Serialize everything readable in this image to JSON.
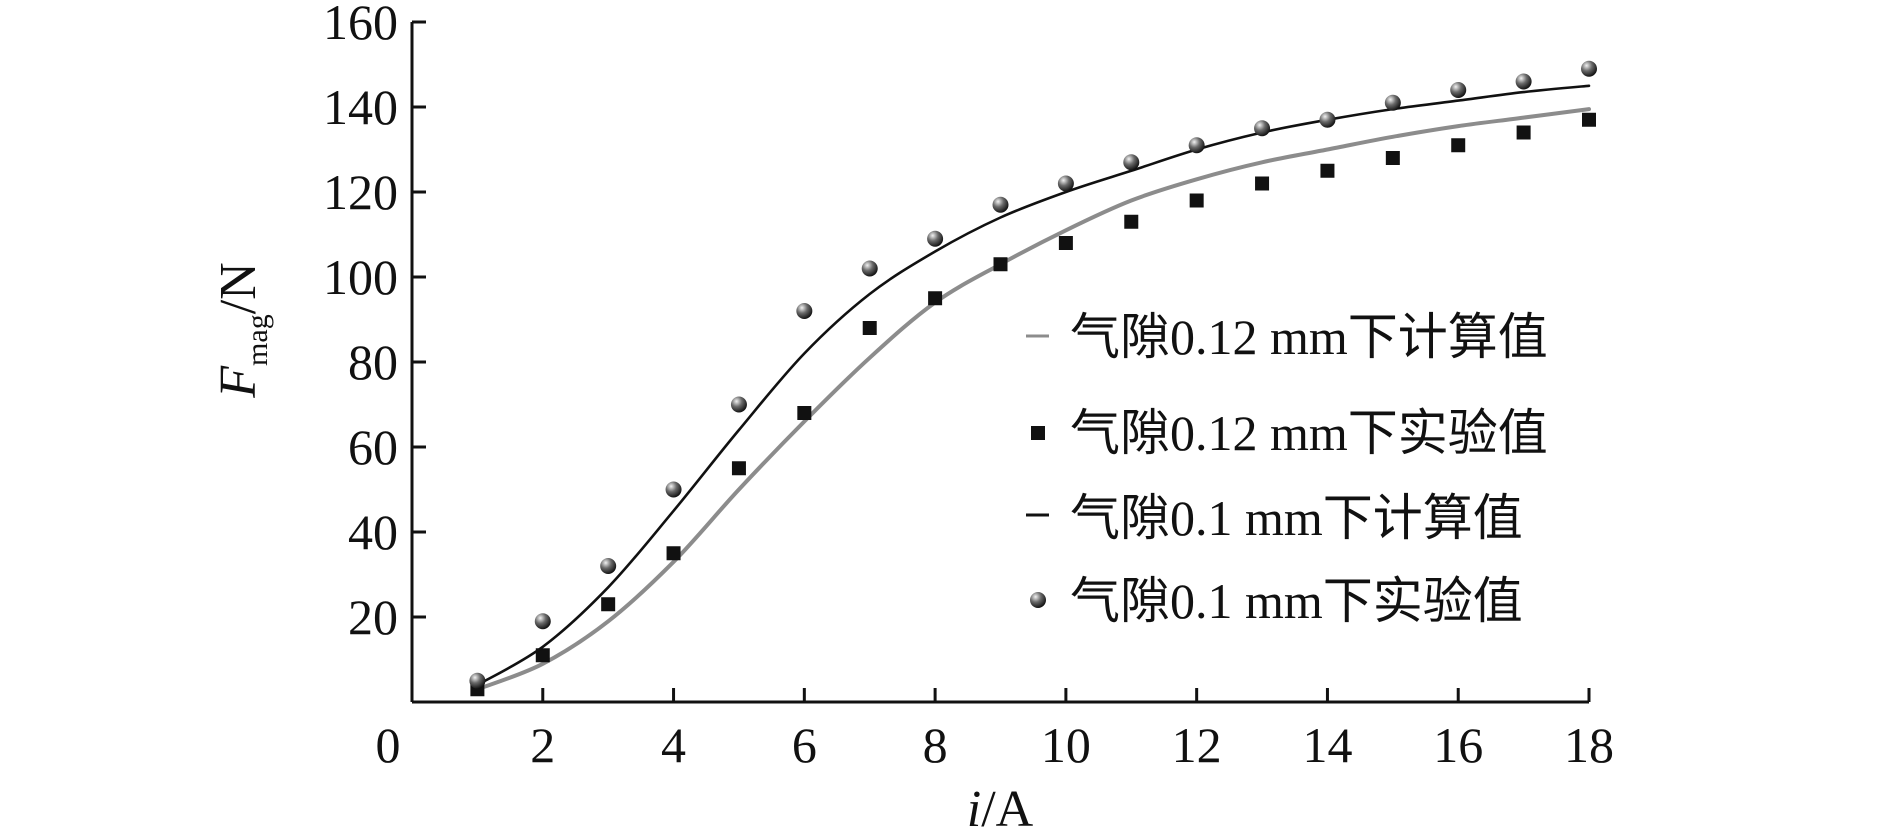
{
  "chart_data": {
    "type": "line",
    "xlabel": {
      "var": "i",
      "unit": "/A"
    },
    "ylabel": {
      "var": "F",
      "sub": "mag",
      "unit": "/N"
    },
    "xlim": [
      0,
      18
    ],
    "ylim": [
      0,
      160
    ],
    "xticks": [
      0,
      2,
      4,
      6,
      8,
      10,
      12,
      14,
      16,
      18
    ],
    "yticks": [
      20,
      40,
      60,
      80,
      100,
      120,
      140,
      160
    ],
    "grid": false,
    "legend_position": "center-right",
    "series": [
      {
        "name": "气隙0.12 mm下计算值",
        "style": "line",
        "color": "#8c8c8c",
        "x": [
          1,
          2,
          3,
          4,
          5,
          6,
          7,
          8,
          9,
          10,
          11,
          12,
          13,
          14,
          15,
          16,
          17,
          18
        ],
        "values": [
          3,
          9,
          19,
          33,
          50,
          66,
          81,
          94,
          103,
          111,
          118,
          123,
          127,
          130,
          133,
          135.5,
          137.5,
          139.5
        ]
      },
      {
        "name": "气隙0.12 mm下实验值",
        "style": "square",
        "color": "#111111",
        "x": [
          1,
          2,
          3,
          4,
          5,
          6,
          7,
          8,
          9,
          10,
          11,
          12,
          13,
          14,
          15,
          16,
          17,
          18
        ],
        "values": [
          3,
          11,
          23,
          35,
          55,
          68,
          88,
          95,
          103,
          108,
          113,
          118,
          122,
          125,
          128,
          131,
          134,
          137
        ]
      },
      {
        "name": "气隙0.1 mm下计算值",
        "style": "line",
        "color": "#111111",
        "x": [
          1,
          2,
          3,
          4,
          5,
          6,
          7,
          8,
          9,
          10,
          11,
          12,
          13,
          14,
          15,
          16,
          17,
          18
        ],
        "values": [
          4,
          13,
          27,
          45,
          64,
          82,
          96,
          106,
          114,
          120,
          125,
          130,
          134,
          137,
          139.5,
          141.5,
          143.5,
          145
        ]
      },
      {
        "name": "气隙0.1 mm下实验值",
        "style": "sphere",
        "color": "#111111",
        "x": [
          1,
          2,
          3,
          4,
          5,
          6,
          7,
          8,
          9,
          10,
          11,
          12,
          13,
          14,
          15,
          16,
          17,
          18
        ],
        "values": [
          5,
          19,
          32,
          50,
          70,
          92,
          102,
          109,
          117,
          122,
          127,
          131,
          135,
          137,
          141,
          144,
          146,
          149
        ]
      }
    ]
  }
}
